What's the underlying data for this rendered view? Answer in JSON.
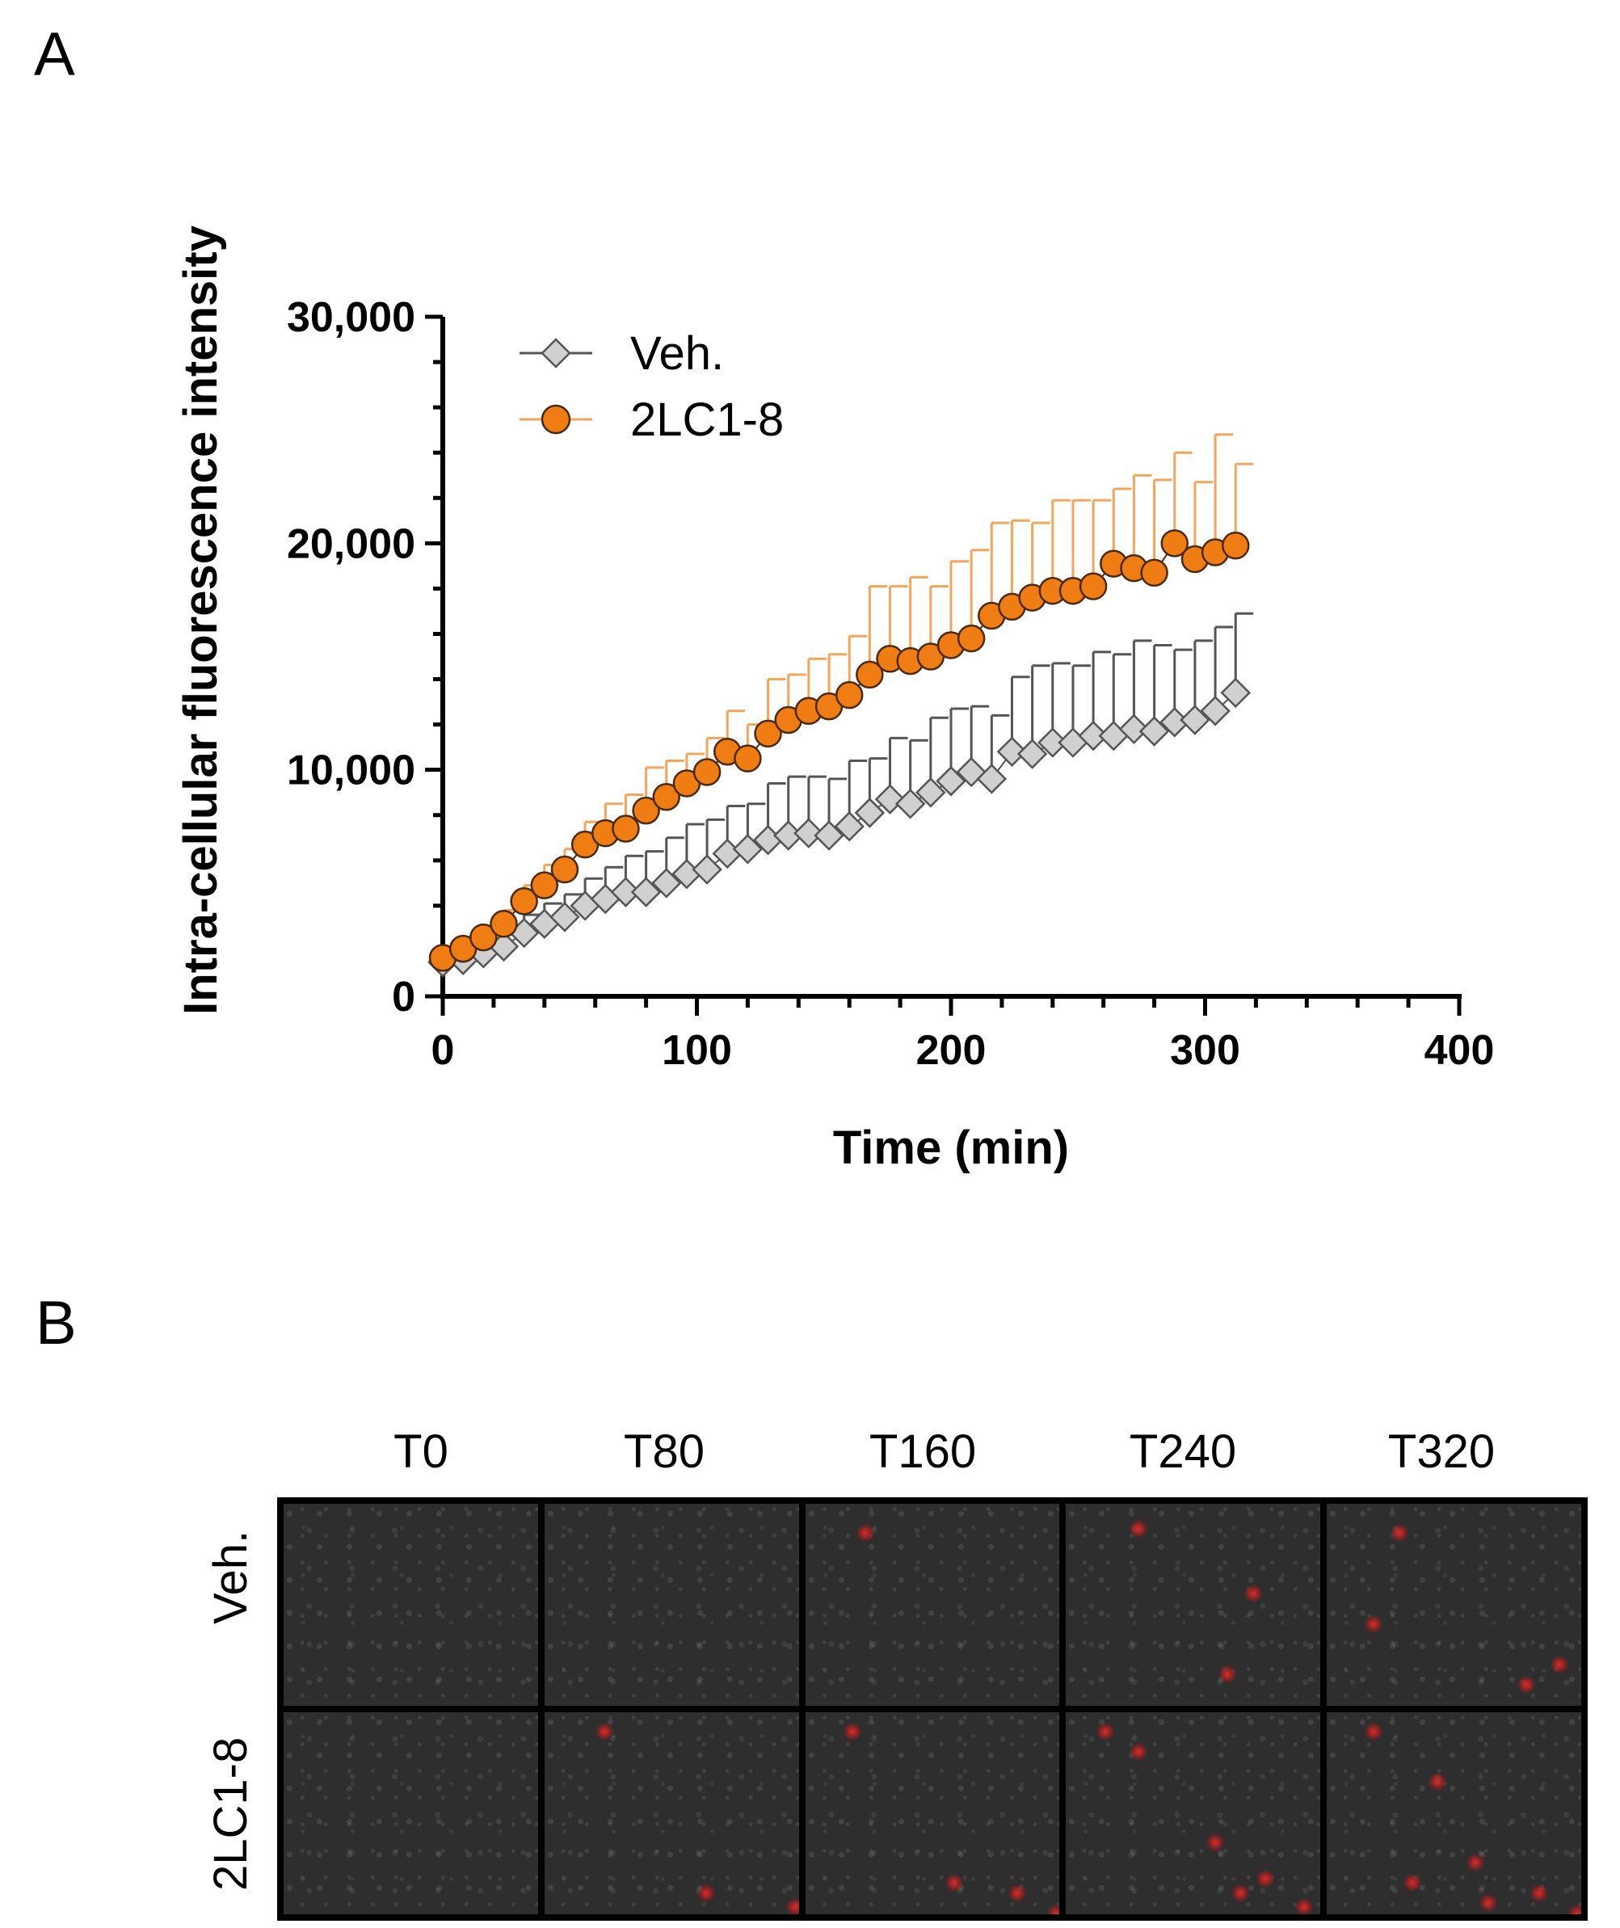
{
  "panels": {
    "a_label": "A",
    "b_label": "B"
  },
  "chart_data": {
    "type": "scatter",
    "title": "",
    "xlabel": "Time (min)",
    "ylabel": "Intra-cellular fluorescence intensity",
    "xlim": [
      0,
      400
    ],
    "ylim": [
      0,
      30000
    ],
    "x_ticks": [
      0,
      100,
      200,
      300,
      400
    ],
    "x_tick_labels": [
      "0",
      "100",
      "200",
      "300",
      "400"
    ],
    "y_ticks": [
      0,
      10000,
      20000,
      30000
    ],
    "y_tick_labels": [
      "0",
      "10,000",
      "20,000",
      "30,000"
    ],
    "legend_position": "top-left",
    "x": [
      0,
      8,
      16,
      24,
      32,
      40,
      48,
      56,
      64,
      72,
      80,
      88,
      96,
      104,
      112,
      120,
      128,
      136,
      144,
      152,
      160,
      168,
      176,
      184,
      192,
      200,
      208,
      216,
      224,
      232,
      240,
      248,
      256,
      264,
      272,
      280,
      288,
      296,
      304,
      312
    ],
    "series": [
      {
        "name": "Veh.",
        "marker": "diamond",
        "color": "#d0d0d0",
        "edge_color": "#555555",
        "error_color": "#555555",
        "values": [
          1500,
          1600,
          1900,
          2200,
          2800,
          3200,
          3500,
          4000,
          4300,
          4600,
          4600,
          5000,
          5400,
          5600,
          6300,
          6500,
          6900,
          7100,
          7200,
          7100,
          7500,
          8100,
          8700,
          8500,
          9000,
          9500,
          9900,
          9600,
          10800,
          10700,
          11200,
          11200,
          11500,
          11500,
          11800,
          11700,
          12100,
          12200,
          12600,
          13400
        ],
        "errors": [
          300,
          400,
          500,
          600,
          800,
          900,
          1000,
          1200,
          1400,
          1600,
          1800,
          2000,
          2200,
          2200,
          2100,
          2000,
          2500,
          2600,
          2500,
          2500,
          2900,
          2400,
          2700,
          2800,
          3300,
          3200,
          2900,
          2800,
          3300,
          3900,
          3500,
          3400,
          3700,
          3600,
          3900,
          3800,
          3200,
          3500,
          3700,
          3500
        ]
      },
      {
        "name": "2LC1-8",
        "marker": "circle",
        "color": "#f07d14",
        "edge_color": "#4a2a10",
        "error_color": "#f5a55a",
        "values": [
          1700,
          2100,
          2600,
          3200,
          4200,
          4900,
          5600,
          6700,
          7200,
          7400,
          8200,
          8800,
          9400,
          9900,
          10800,
          10500,
          11600,
          12200,
          12600,
          12800,
          13300,
          14200,
          14900,
          14800,
          15000,
          15500,
          15800,
          16800,
          17200,
          17600,
          17900,
          17900,
          18100,
          19100,
          18900,
          18700,
          20000,
          19300,
          19600,
          19900
        ],
        "errors": [
          300,
          400,
          500,
          600,
          700,
          900,
          900,
          1000,
          1300,
          1500,
          1900,
          1600,
          1300,
          1500,
          1800,
          1500,
          2400,
          2000,
          2300,
          2300,
          2600,
          3900,
          3200,
          3700,
          3100,
          3700,
          3900,
          4100,
          3800,
          3300,
          4000,
          4000,
          3800,
          3300,
          4100,
          4100,
          4000,
          3400,
          5200,
          3600
        ]
      }
    ]
  },
  "microscopy": {
    "time_labels": [
      "T0",
      "T80",
      "T160",
      "T240",
      "T320"
    ],
    "row_labels": [
      "Veh.",
      "2LC1-8"
    ]
  }
}
